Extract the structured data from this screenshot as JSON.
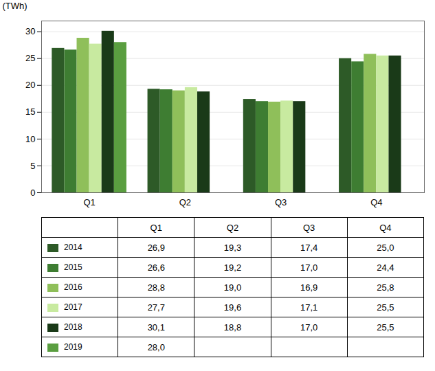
{
  "chart_data": {
    "type": "bar",
    "categories": [
      "Q1",
      "Q2",
      "Q3",
      "Q4"
    ],
    "series": [
      {
        "name": "2014",
        "color": "#2D5A27",
        "values": [
          26.9,
          19.3,
          17.4,
          25.0
        ],
        "value_labels": [
          "26,9",
          "19,3",
          "17,4",
          "25,0"
        ]
      },
      {
        "name": "2015",
        "color": "#3E7D32",
        "values": [
          26.6,
          19.2,
          17.0,
          24.4
        ],
        "value_labels": [
          "26,6",
          "19,2",
          "17,0",
          "24,4"
        ]
      },
      {
        "name": "2016",
        "color": "#8FBF5A",
        "values": [
          28.8,
          19.0,
          16.9,
          25.8
        ],
        "value_labels": [
          "28,8",
          "19,0",
          "16,9",
          "25,8"
        ]
      },
      {
        "name": "2017",
        "color": "#C8EAA0",
        "values": [
          27.7,
          19.6,
          17.1,
          25.5
        ],
        "value_labels": [
          "27,7",
          "19,6",
          "17,1",
          "25,5"
        ]
      },
      {
        "name": "2018",
        "color": "#1A3A18",
        "values": [
          30.1,
          18.8,
          17.0,
          25.5
        ],
        "value_labels": [
          "30,1",
          "18,8",
          "17,0",
          "25,5"
        ]
      },
      {
        "name": "2019",
        "color": "#5A9E40",
        "values": [
          28.0,
          null,
          null,
          null
        ],
        "value_labels": [
          "28,0",
          null,
          null,
          null
        ]
      }
    ],
    "ylabel": "(TWh)",
    "ylim": [
      0,
      32
    ],
    "yticks": [
      0,
      5,
      10,
      15,
      20,
      25,
      30
    ],
    "grid": true,
    "legend": "bottom"
  }
}
